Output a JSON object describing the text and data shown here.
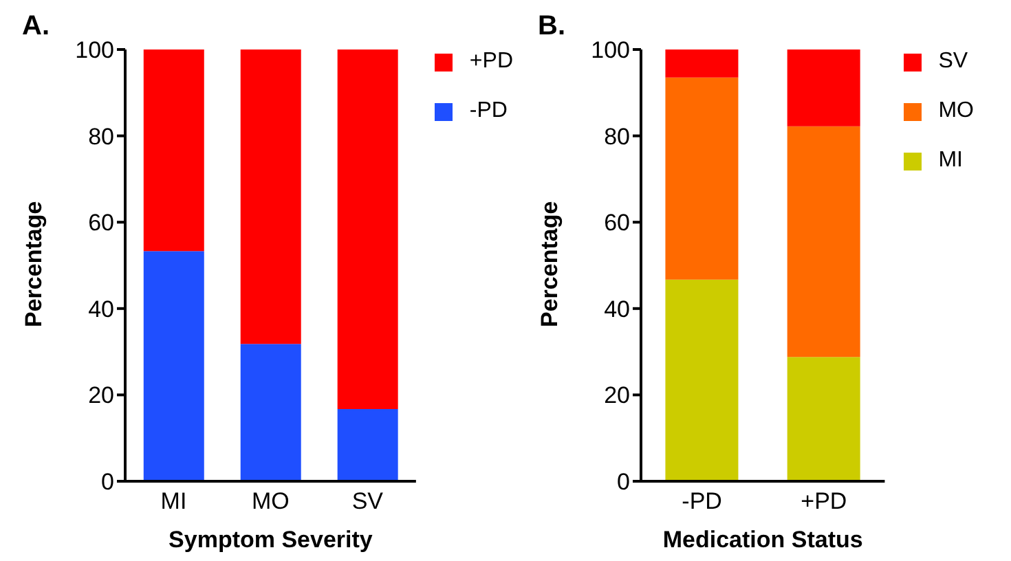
{
  "chart_data": [
    {
      "type": "bar",
      "title": "A.",
      "xlabel": "Symptom Severity",
      "ylabel": "Percentage",
      "categories": [
        "MI",
        "MO",
        "SV"
      ],
      "stacked": true,
      "ylim": [
        0,
        100
      ],
      "yticks": [
        0,
        20,
        40,
        60,
        80,
        100
      ],
      "grid": false,
      "legend": "top right",
      "series": [
        {
          "name": "-PD",
          "color": "#1f4fff",
          "values": [
            53.3,
            31.8,
            16.7
          ]
        },
        {
          "name": "+PD",
          "color": "#ff0000",
          "values": [
            46.7,
            68.2,
            83.3
          ]
        }
      ]
    },
    {
      "type": "bar",
      "title": "B.",
      "xlabel": "Medication Status",
      "ylabel": "Percentage",
      "categories": [
        "-PD",
        "+PD"
      ],
      "stacked": true,
      "ylim": [
        0,
        100
      ],
      "yticks": [
        0,
        20,
        40,
        60,
        80,
        100
      ],
      "grid": false,
      "legend": "top right",
      "series": [
        {
          "name": "MI",
          "color": "#cccc00",
          "values": [
            46.7,
            28.8
          ]
        },
        {
          "name": "MO",
          "color": "#ff6a00",
          "values": [
            46.8,
            53.4
          ]
        },
        {
          "name": "SV",
          "color": "#ff0000",
          "values": [
            6.5,
            17.8
          ]
        }
      ]
    }
  ]
}
